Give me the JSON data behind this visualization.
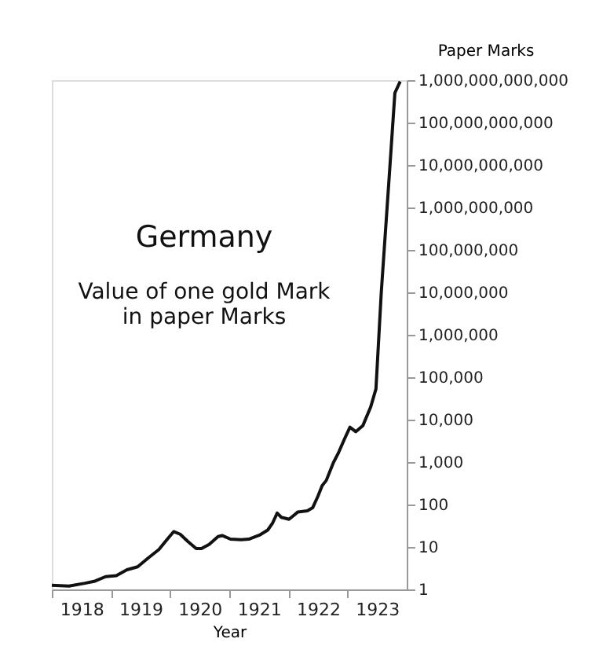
{
  "chart_data": {
    "type": "line",
    "title": "Germany",
    "subtitle": "Value of one gold Mark\nin paper Marks",
    "xlabel": "Year",
    "ylabel": "Paper Marks",
    "x": [
      1918.0,
      1918.29,
      1918.56,
      1918.73,
      1918.91,
      1919.09,
      1919.27,
      1919.45,
      1919.63,
      1919.81,
      1919.94,
      1920.06,
      1920.17,
      1920.3,
      1920.44,
      1920.53,
      1920.66,
      1920.81,
      1920.88,
      1921.02,
      1921.2,
      1921.33,
      1921.51,
      1921.65,
      1921.73,
      1921.81,
      1921.88,
      1922.01,
      1922.1,
      1922.16,
      1922.32,
      1922.41,
      1922.5,
      1922.57,
      1922.64,
      1922.76,
      1922.85,
      1922.95,
      1923.04,
      1923.14,
      1923.26,
      1923.39,
      1923.48,
      1923.57,
      1923.71,
      1923.8,
      1923.89
    ],
    "series": [
      {
        "color": "#111111",
        "values": [
          1.25,
          1.2,
          1.4,
          1.57,
          2.0,
          2.1,
          2.9,
          3.4,
          5.5,
          8.7,
          14.5,
          23,
          20,
          13.5,
          9.2,
          9.2,
          11.5,
          17.6,
          18.6,
          15.3,
          14.9,
          15.3,
          19,
          25,
          36,
          63,
          50,
          45,
          57,
          67,
          71,
          84,
          158,
          278,
          369,
          970,
          1700,
          3550,
          6650,
          5200,
          7300,
          19700,
          53000,
          10000000,
          7000000000,
          500000000000,
          930000000000
        ]
      }
    ],
    "xlim": [
      1918,
      1924
    ],
    "xticks": [
      {
        "value": 1918,
        "label": null
      },
      {
        "value": 1918.5,
        "label": "1918"
      },
      {
        "value": 1919,
        "label": null
      },
      {
        "value": 1919.5,
        "label": "1919"
      },
      {
        "value": 1920,
        "label": null
      },
      {
        "value": 1920.5,
        "label": "1920"
      },
      {
        "value": 1921,
        "label": null
      },
      {
        "value": 1921.5,
        "label": "1921"
      },
      {
        "value": 1922,
        "label": null
      },
      {
        "value": 1922.5,
        "label": "1922"
      },
      {
        "value": 1923,
        "label": null
      },
      {
        "value": 1923.5,
        "label": "1923"
      }
    ],
    "ylim": [
      1,
      1000000000000
    ],
    "yticks": [
      1,
      10,
      100,
      {
        "value": 1000,
        "label": "1,000"
      },
      {
        "value": 10000,
        "label": "10,000"
      },
      {
        "value": 100000,
        "label": "100,000"
      },
      {
        "value": 1000000,
        "label": "1,000,000"
      },
      {
        "value": 10000000,
        "label": "10,000,000"
      },
      {
        "value": 100000000,
        "label": "100,000,000"
      },
      {
        "value": 1000000000,
        "label": "1,000,000,000"
      },
      {
        "value": 10000000000,
        "label": "10,000,000,000"
      },
      {
        "value": 100000000000,
        "label": "100,000,000,000"
      },
      {
        "value": 1000000000000,
        "label": "1,000,000,000,000"
      }
    ],
    "log": "y",
    "grid": false,
    "legend": false,
    "marker": "none",
    "line_style": "solid"
  }
}
